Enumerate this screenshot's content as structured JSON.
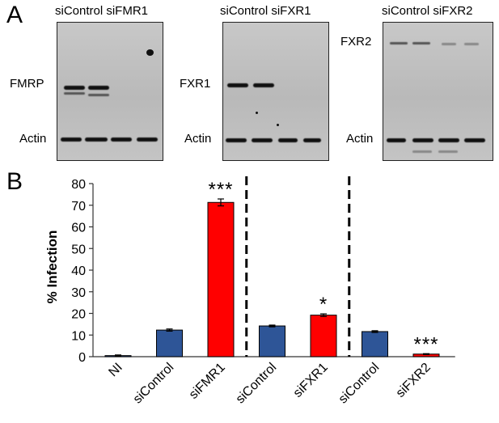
{
  "panel_a": {
    "letter": "A",
    "blots": [
      {
        "header": "siControl  siFMR1",
        "target_label": "FMRP",
        "loading_label": "Actin"
      },
      {
        "header": "siControl  siFXR1",
        "target_label": "FXR1",
        "loading_label": "Actin"
      },
      {
        "header": "siControl  siFXR2",
        "target_label": "FXR2",
        "loading_label": "Actin"
      }
    ]
  },
  "panel_b": {
    "letter": "B"
  },
  "chart_data": {
    "type": "bar",
    "ylabel": "% Infection",
    "xlabel": "",
    "title": "",
    "ylim": [
      0,
      80
    ],
    "yticks": [
      0,
      10,
      20,
      30,
      40,
      50,
      60,
      70,
      80
    ],
    "categories": [
      "NI",
      "siControl",
      "siFMR1",
      "siControl",
      "siFXR1",
      "siControl",
      "siFXR2"
    ],
    "values": [
      0.5,
      12.3,
      71.3,
      14.2,
      19.2,
      11.6,
      1.2
    ],
    "errors": [
      0.3,
      0.5,
      1.6,
      0.4,
      0.6,
      0.4,
      0.2
    ],
    "colors": [
      "#2e5597",
      "#2e5597",
      "#ff0000",
      "#2e5597",
      "#ff0000",
      "#2e5597",
      "#ff0000"
    ],
    "significance": [
      "",
      "",
      "***",
      "",
      "*",
      "",
      "***"
    ],
    "group_separators_after": [
      2,
      4
    ],
    "grid": false,
    "legend": "none"
  }
}
